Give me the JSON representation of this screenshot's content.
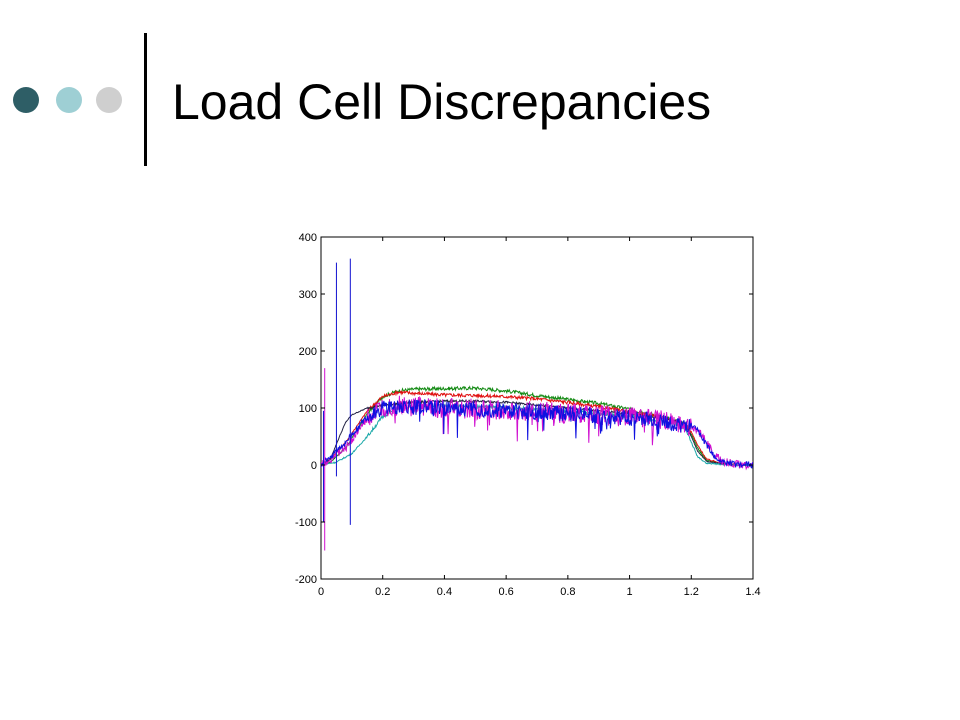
{
  "slide": {
    "title": "Load Cell Discrepancies",
    "bullet_colors": [
      "#2e5e66",
      "#9ecfd4",
      "#cfcfcf"
    ]
  },
  "chart_data": {
    "type": "line",
    "title": "",
    "xlabel": "",
    "ylabel": "",
    "xlim": [
      0,
      1.4
    ],
    "ylim": [
      -200,
      400
    ],
    "x_ticks": [
      0,
      0.2,
      0.4,
      0.6,
      0.8,
      1,
      1.2,
      1.4
    ],
    "x_tick_labels": [
      "0",
      "0.2",
      "0.4",
      "0.6",
      "0.8",
      "1",
      "1.2",
      "1.4"
    ],
    "y_ticks": [
      -200,
      -100,
      0,
      100,
      200,
      300,
      400
    ],
    "y_tick_labels": [
      "-200",
      "-100",
      "0",
      "100",
      "200",
      "300",
      "400"
    ],
    "grid": false,
    "legend": "none",
    "spikes": [
      {
        "x": 0.05,
        "y_min": -20,
        "y_max": 355,
        "color": "#1010d0"
      },
      {
        "x": 0.095,
        "y_min": -105,
        "y_max": 362,
        "color": "#1010d0"
      },
      {
        "x": 0.012,
        "y_min": -150,
        "y_max": 170,
        "color": "#d010d0"
      },
      {
        "x": 0.008,
        "y_min": -100,
        "y_max": 95,
        "color": "#1010d0"
      }
    ],
    "series": [
      {
        "color": "#138a13",
        "noise": 3,
        "x": [
          0,
          0.03,
          0.08,
          0.15,
          0.2,
          0.25,
          0.3,
          0.4,
          0.5,
          0.6,
          0.7,
          0.8,
          0.9,
          1.0,
          1.1,
          1.15,
          1.18,
          1.2,
          1.22,
          1.25,
          1.3,
          1.35,
          1.4
        ],
        "y": [
          0,
          5,
          30,
          90,
          120,
          130,
          133,
          134,
          135,
          130,
          122,
          115,
          108,
          98,
          85,
          78,
          72,
          55,
          30,
          8,
          2,
          0,
          0
        ]
      },
      {
        "color": "#e01010",
        "noise": 3,
        "x": [
          0,
          0.03,
          0.08,
          0.15,
          0.2,
          0.25,
          0.3,
          0.4,
          0.5,
          0.6,
          0.7,
          0.8,
          0.9,
          1.0,
          1.1,
          1.15,
          1.18,
          1.2,
          1.22,
          1.25,
          1.3,
          1.35,
          1.4
        ],
        "y": [
          0,
          10,
          40,
          95,
          120,
          128,
          126,
          123,
          122,
          120,
          116,
          110,
          102,
          94,
          84,
          77,
          72,
          58,
          35,
          10,
          3,
          0,
          0
        ]
      },
      {
        "color": "#222244",
        "noise": 2,
        "x": [
          0,
          0.03,
          0.06,
          0.08,
          0.1,
          0.15,
          0.2,
          0.3,
          0.4,
          0.5,
          0.6,
          0.7,
          0.8,
          0.9,
          1.0,
          1.1,
          1.15,
          1.18,
          1.2,
          1.22,
          1.25,
          1.3,
          1.35,
          1.4
        ],
        "y": [
          0,
          10,
          50,
          75,
          88,
          100,
          105,
          110,
          112,
          112,
          110,
          105,
          100,
          95,
          90,
          82,
          78,
          70,
          50,
          25,
          6,
          2,
          0,
          0
        ]
      },
      {
        "color": "#1aa8a8",
        "noise": 3,
        "x": [
          0,
          0.05,
          0.1,
          0.15,
          0.2,
          0.25,
          0.3,
          0.4,
          0.5,
          0.6,
          0.7,
          0.8,
          0.9,
          1.0,
          1.1,
          1.15,
          1.18,
          1.2,
          1.22,
          1.25,
          1.3,
          1.35,
          1.4
        ],
        "y": [
          0,
          5,
          20,
          50,
          85,
          100,
          103,
          104,
          103,
          101,
          98,
          95,
          90,
          85,
          78,
          72,
          65,
          40,
          15,
          3,
          1,
          0,
          0
        ]
      },
      {
        "color": "#d010d0",
        "noise": 18,
        "x": [
          0,
          0.03,
          0.08,
          0.15,
          0.2,
          0.25,
          0.3,
          0.4,
          0.5,
          0.6,
          0.7,
          0.8,
          0.9,
          1.0,
          1.1,
          1.15,
          1.2,
          1.22,
          1.25,
          1.28,
          1.3,
          1.35,
          1.4
        ],
        "y": [
          0,
          10,
          30,
          80,
          100,
          105,
          102,
          100,
          98,
          96,
          94,
          91,
          88,
          84,
          78,
          73,
          68,
          62,
          40,
          15,
          6,
          1,
          0
        ]
      },
      {
        "color": "#1010e0",
        "noise": 14,
        "x": [
          0,
          0.03,
          0.08,
          0.15,
          0.2,
          0.25,
          0.3,
          0.4,
          0.5,
          0.6,
          0.7,
          0.8,
          0.9,
          1.0,
          1.1,
          1.15,
          1.2,
          1.22,
          1.25,
          1.28,
          1.3,
          1.35,
          1.4
        ],
        "y": [
          0,
          15,
          40,
          85,
          100,
          103,
          102,
          100,
          98,
          96,
          93,
          90,
          87,
          83,
          77,
          72,
          68,
          60,
          35,
          12,
          5,
          1,
          0
        ]
      }
    ]
  }
}
